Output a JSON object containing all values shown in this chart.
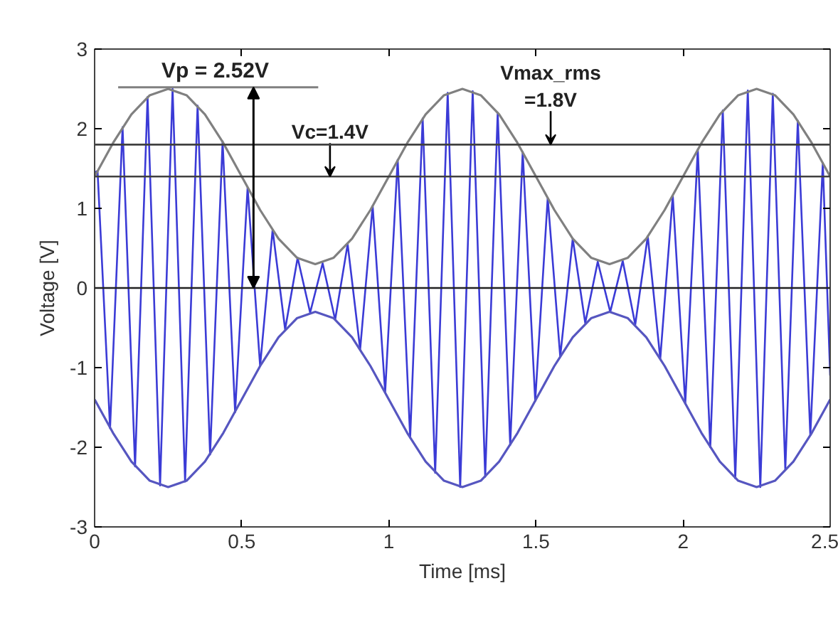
{
  "chart_data": {
    "type": "line",
    "xlabel": "Time [ms]",
    "ylabel": "Voltage [V]",
    "xlim": [
      0,
      2.5
    ],
    "xticks": [
      0,
      0.5,
      1,
      1.5,
      2,
      2.5
    ],
    "ylim": [
      -3,
      3
    ],
    "yticks": [
      -3,
      -2,
      -1,
      0,
      1,
      2,
      3
    ],
    "grid": false,
    "marker": "none",
    "line_style": "solid",
    "series": [
      {
        "color": "#3b3bd6",
        "x": [
          0,
          0.01,
          0.0525,
          0.095,
          0.1375,
          0.18,
          0.2225,
          0.265,
          0.3075,
          0.35,
          0.3925,
          0.435,
          0.4775,
          0.52,
          0.5625,
          0.605,
          0.6475,
          0.69,
          0.7325,
          0.775,
          0.8175,
          0.86,
          0.9025,
          0.945,
          0.9875,
          1.03,
          1.0725,
          1.115,
          1.1575,
          1.2,
          1.2425,
          1.285,
          1.3275,
          1.37,
          1.4125,
          1.455,
          1.4975,
          1.54,
          1.5825,
          1.625,
          1.6675,
          1.71,
          1.7525,
          1.795,
          1.8375,
          1.88,
          1.9225,
          1.965,
          2.0075,
          2.05,
          2.0925,
          2.135,
          2.1775,
          2.22,
          2.2625,
          2.305,
          2.3475,
          2.39,
          2.4325,
          2.475,
          2.5
        ],
        "values": [
          1.45,
          1.47,
          -1.76,
          2.02,
          -2.24,
          2.4,
          -2.48,
          2.5,
          -2.43,
          2.29,
          -2.09,
          1.84,
          -1.56,
          1.26,
          -0.98,
          0.73,
          -0.52,
          0.38,
          -0.31,
          0.31,
          -0.4,
          0.55,
          -0.77,
          1.03,
          -1.31,
          1.61,
          -1.88,
          2.13,
          -2.32,
          2.45,
          -2.5,
          2.47,
          -2.37,
          2.2,
          -1.97,
          1.71,
          -1.42,
          1.13,
          -0.86,
          0.62,
          -0.44,
          0.33,
          -0.3,
          0.34,
          -0.46,
          0.65,
          -0.89,
          1.16,
          -1.45,
          1.74,
          -2.0,
          2.23,
          -2.39,
          2.48,
          -2.5,
          2.44,
          -2.28,
          2.1,
          -1.85,
          1.57,
          -1.1
        ]
      },
      {
        "color": "#808080",
        "x": [
          0,
          0.0625,
          0.125,
          0.1875,
          0.25,
          0.3125,
          0.375,
          0.4375,
          0.5,
          0.5625,
          0.625,
          0.6875,
          0.75,
          0.8125,
          0.875,
          0.9375,
          1,
          1.0625,
          1.125,
          1.1875,
          1.25,
          1.3125,
          1.375,
          1.4375,
          1.5,
          1.5625,
          1.625,
          1.6875,
          1.75,
          1.8125,
          1.875,
          1.9375,
          2,
          2.0625,
          2.125,
          2.1875,
          2.25,
          2.3125,
          2.375,
          2.4375,
          2.5
        ],
        "values": [
          1.4,
          1.82,
          2.18,
          2.42,
          2.5,
          2.42,
          2.18,
          1.82,
          1.4,
          0.98,
          0.62,
          0.38,
          0.3,
          0.38,
          0.62,
          0.98,
          1.4,
          1.82,
          2.18,
          2.42,
          2.5,
          2.42,
          2.18,
          1.82,
          1.4,
          0.98,
          0.62,
          0.38,
          0.3,
          0.38,
          0.62,
          0.98,
          1.4,
          1.82,
          2.18,
          2.42,
          2.5,
          2.42,
          2.18,
          1.82,
          1.4
        ]
      },
      {
        "color": "#5656c0",
        "x": [
          0,
          0.0625,
          0.125,
          0.1875,
          0.25,
          0.3125,
          0.375,
          0.4375,
          0.5,
          0.5625,
          0.625,
          0.6875,
          0.75,
          0.8125,
          0.875,
          0.9375,
          1,
          1.0625,
          1.125,
          1.1875,
          1.25,
          1.3125,
          1.375,
          1.4375,
          1.5,
          1.5625,
          1.625,
          1.6875,
          1.75,
          1.8125,
          1.875,
          1.9375,
          2,
          2.0625,
          2.125,
          2.1875,
          2.25,
          2.3125,
          2.375,
          2.4375,
          2.5
        ],
        "values": [
          -1.4,
          -1.82,
          -2.18,
          -2.42,
          -2.5,
          -2.42,
          -2.18,
          -1.82,
          -1.4,
          -0.98,
          -0.62,
          -0.38,
          -0.3,
          -0.38,
          -0.62,
          -0.98,
          -1.4,
          -1.82,
          -2.18,
          -2.42,
          -2.5,
          -2.42,
          -2.18,
          -1.82,
          -1.4,
          -0.98,
          -0.62,
          -0.38,
          -0.3,
          -0.38,
          -0.62,
          -0.98,
          -1.4,
          -1.82,
          -2.18,
          -2.42,
          -2.5,
          -2.42,
          -2.18,
          -1.82,
          -1.4
        ]
      }
    ],
    "ref_lines": [
      {
        "axis": "y",
        "value": 0,
        "color": "#222222"
      },
      {
        "axis": "y",
        "value": 1.4,
        "label": "Vc=1.4V",
        "color": "#404040"
      },
      {
        "axis": "y",
        "value": 1.8,
        "label": "Vmax_rms\n=1.8V",
        "color": "#404040"
      },
      {
        "axis": "y",
        "value": 2.52,
        "label": "Vp = 2.52V",
        "color": "#808080"
      }
    ]
  }
}
